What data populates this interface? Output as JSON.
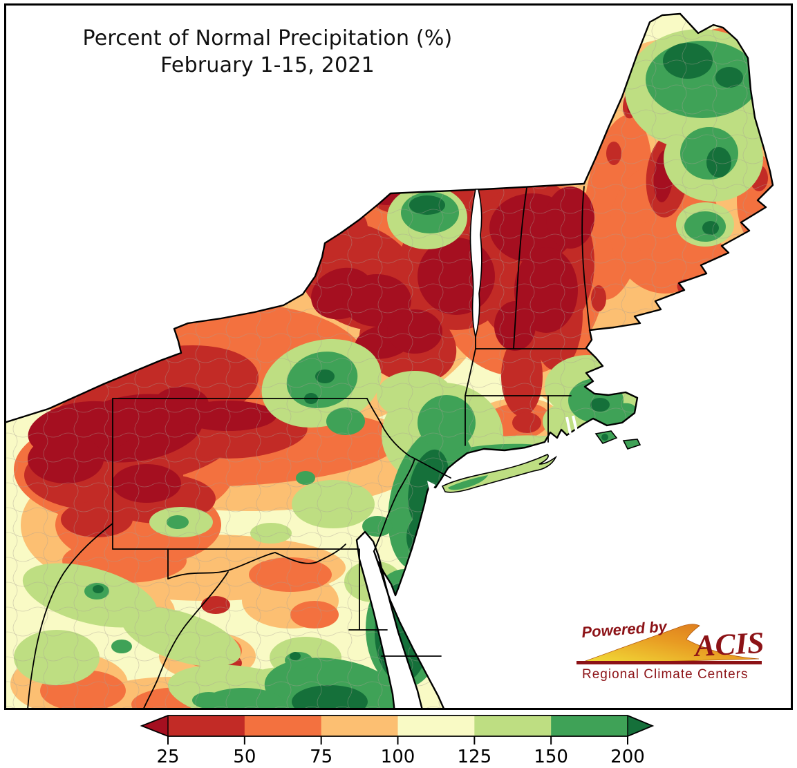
{
  "title": {
    "line1": "Percent of Normal Precipitation (%)",
    "line2": "February 1-15, 2021"
  },
  "colorbar": {
    "tick_labels": [
      "25",
      "50",
      "75",
      "100",
      "125",
      "150",
      "200"
    ],
    "classes": [
      {
        "label": "< 25",
        "color": "#a50f20"
      },
      {
        "label": "25-50",
        "color": "#c22b26"
      },
      {
        "label": "50-75",
        "color": "#f3713f"
      },
      {
        "label": "75-100",
        "color": "#fcbf72"
      },
      {
        "label": "100-125",
        "color": "#f9fac5"
      },
      {
        "label": "125-150",
        "color": "#bede82"
      },
      {
        "label": "150-200",
        "color": "#3fa257"
      },
      {
        "label": "> 200",
        "color": "#15703a"
      }
    ]
  },
  "logo": {
    "powered_by": "Powered by",
    "acronym": "ACIS",
    "subtitle": "Regional Climate Centers",
    "text_color": "#8c1216",
    "swoosh_yellow": "#f2e23a",
    "swoosh_orange": "#d96f1d"
  },
  "map": {
    "region": "Northeastern United States",
    "water_color": "#ffffff",
    "boundary_color": "#000000",
    "visible_features": [
      "Lake Erie",
      "Lake Ontario",
      "Lake Champlain",
      "Chesapeake Bay",
      "Delaware Bay",
      "Long Island",
      "Cape Cod",
      "Atlantic coastline",
      "state boundaries",
      "county boundaries"
    ],
    "highlights": [
      {
        "area": "Western New York and northwestern Pennsylvania",
        "percent_of_normal": "< 25 to 50"
      },
      {
        "area": "Adirondacks, Vermont and central New York",
        "percent_of_normal": "< 25 to 50"
      },
      {
        "area": "Coastal and western Maine, New Hampshire",
        "percent_of_normal": "50 to 100"
      },
      {
        "area": "Northern Maine interior",
        "percent_of_normal": "125 to > 200"
      },
      {
        "area": "Central Pennsylvania and West Virginia",
        "percent_of_normal": "75 to 150"
      },
      {
        "area": "New Jersey, Delmarva Peninsula and southeastern Virginia",
        "percent_of_normal": "150 to > 200"
      },
      {
        "area": "Eastern Massachusetts, Cape Cod, islands and Long Island",
        "percent_of_normal": "125 to 200"
      },
      {
        "area": "Interior Connecticut",
        "percent_of_normal": "50 to 100"
      }
    ]
  }
}
